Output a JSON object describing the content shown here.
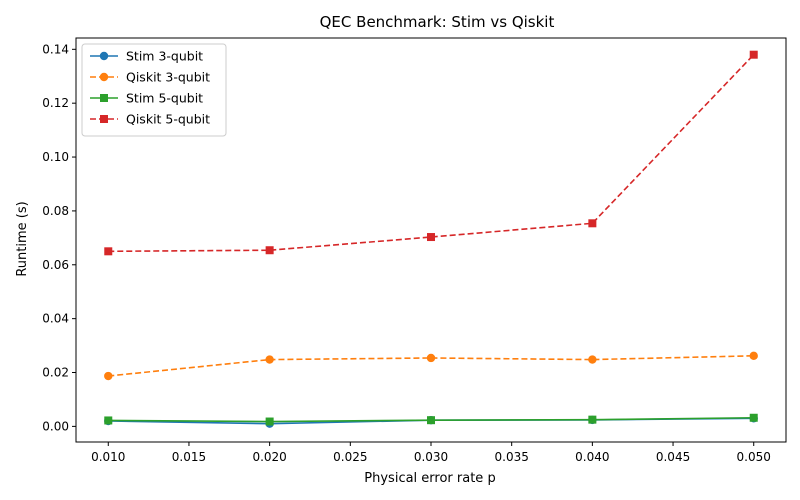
{
  "chart_data": {
    "type": "line",
    "title": "QEC Benchmark: Stim vs Qiskit",
    "xlabel": "Physical error rate p",
    "ylabel": "Runtime (s)",
    "x": [
      0.01,
      0.02,
      0.03,
      0.04,
      0.05
    ],
    "xlim": [
      0.008,
      0.052
    ],
    "ylim": [
      -0.0058,
      0.1442
    ],
    "xticks": [
      0.01,
      0.015,
      0.02,
      0.025,
      0.03,
      0.035,
      0.04,
      0.045,
      0.05
    ],
    "xtick_labels": [
      "0.010",
      "0.015",
      "0.020",
      "0.025",
      "0.030",
      "0.035",
      "0.040",
      "0.045",
      "0.050"
    ],
    "yticks": [
      0.0,
      0.02,
      0.04,
      0.06,
      0.08,
      0.1,
      0.12,
      0.14
    ],
    "ytick_labels": [
      "0.00",
      "0.02",
      "0.04",
      "0.06",
      "0.08",
      "0.10",
      "0.12",
      "0.14"
    ],
    "grid": false,
    "legend_position": "top-left",
    "series": [
      {
        "name": "Stim 3-qubit",
        "values": [
          0.002,
          0.001,
          0.0023,
          0.0024,
          0.003
        ],
        "color": "#1f77b4",
        "linestyle": "solid",
        "marker": "circle"
      },
      {
        "name": "Qiskit 3-qubit",
        "values": [
          0.0187,
          0.0248,
          0.0254,
          0.0248,
          0.0262
        ],
        "color": "#ff7f0e",
        "linestyle": "dashed",
        "marker": "circle"
      },
      {
        "name": "Stim 5-qubit",
        "values": [
          0.0022,
          0.0018,
          0.0023,
          0.0025,
          0.0032
        ],
        "color": "#2ca02c",
        "linestyle": "solid",
        "marker": "square"
      },
      {
        "name": "Qiskit 5-qubit",
        "values": [
          0.065,
          0.0654,
          0.0703,
          0.0754,
          0.138
        ],
        "color": "#d62728",
        "linestyle": "dashed",
        "marker": "square"
      }
    ]
  }
}
